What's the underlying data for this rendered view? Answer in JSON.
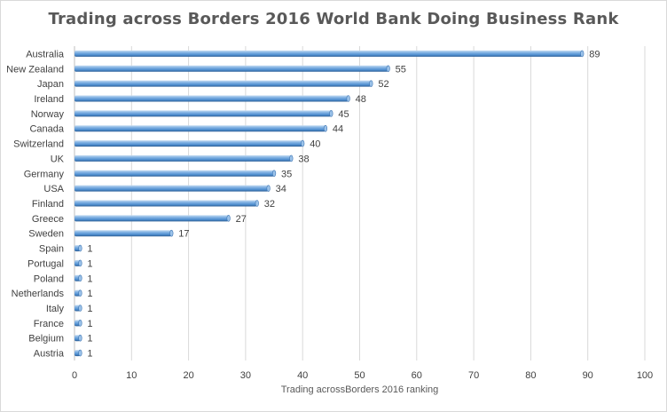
{
  "chart_data": {
    "type": "bar",
    "orientation": "horizontal",
    "title": "Trading across Borders 2016 World Bank Doing Business Rank",
    "xlabel": "Trading acrossBorders 2016 ranking",
    "ylabel": "",
    "xlim": [
      0,
      100
    ],
    "xticks": [
      0,
      10,
      20,
      30,
      40,
      50,
      60,
      70,
      80,
      90,
      100
    ],
    "grid": true,
    "legend": "none",
    "bar_color": "#5b9bd5",
    "categories": [
      "Australia",
      "New Zealand",
      "Japan",
      "Ireland",
      "Norway",
      "Canada",
      "Switzerland",
      "UK",
      "Germany",
      "USA",
      "Finland",
      "Greece",
      "Sweden",
      "Spain",
      "Portugal",
      "Poland",
      "Netherlands",
      "Italy",
      "France",
      "Belgium",
      "Austria"
    ],
    "values": [
      89,
      55,
      52,
      48,
      45,
      44,
      40,
      38,
      35,
      34,
      32,
      27,
      17,
      1,
      1,
      1,
      1,
      1,
      1,
      1,
      1
    ]
  }
}
